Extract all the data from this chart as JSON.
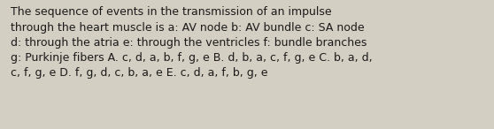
{
  "lines": [
    "The sequence of events in the transmission of an impulse",
    "through the heart muscle is a: AV node b: AV bundle c: SA node",
    "d: through the atria e: through the ventricles f: bundle branches",
    "g: Purkinje fibers A. c, d, a, b, f, g, e B. d, b, a, c, f, g, e C. b, a, d,",
    "c, f, g, e D. f, g, d, c, b, a, e E. c, d, a, f, b, g, e"
  ],
  "background_color": "#d4cfc3",
  "text_color": "#1a1a1a",
  "font_size": 9.0,
  "fig_width": 5.58,
  "fig_height": 1.46
}
